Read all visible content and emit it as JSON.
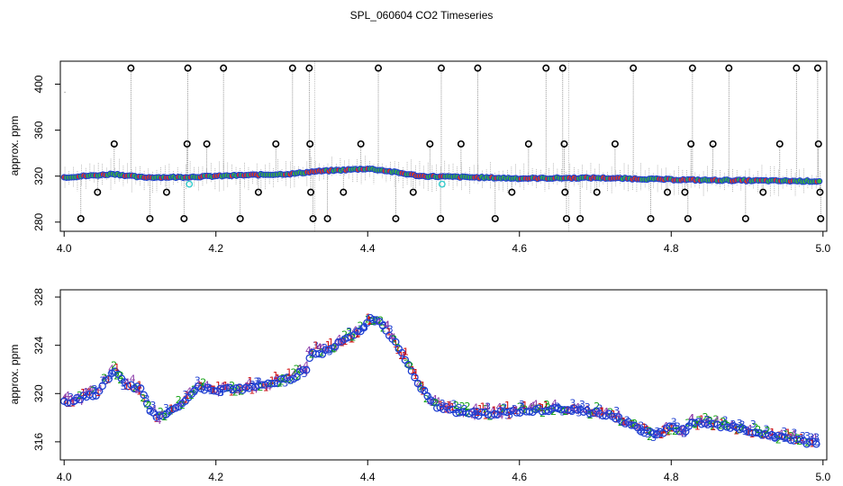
{
  "figure": {
    "title": "SPL_060604  CO2 Timeseries"
  },
  "chart_data": [
    {
      "type": "scatter",
      "panel": "top",
      "ylabel": "approx. ppm",
      "xlabel": "",
      "xlim": [
        3.995,
        5.005
      ],
      "ylim": [
        272,
        420
      ],
      "x_ticks": [
        4.0,
        4.2,
        4.4,
        4.6,
        4.8,
        5.0
      ],
      "x_tick_labels": [
        "4.0",
        "4.2",
        "4.4",
        "4.6",
        "4.8",
        "5.0"
      ],
      "y_ticks": [
        280,
        320,
        360,
        400
      ],
      "y_tick_labels": [
        "280",
        "320",
        "360",
        "400"
      ],
      "baseline_knots": [
        [
          4.0,
          319
        ],
        [
          4.05,
          321
        ],
        [
          4.065,
          322
        ],
        [
          4.1,
          319
        ],
        [
          4.15,
          319
        ],
        [
          4.2,
          320
        ],
        [
          4.3,
          322
        ],
        [
          4.33,
          324
        ],
        [
          4.4,
          326.5
        ],
        [
          4.42,
          325
        ],
        [
          4.47,
          320
        ],
        [
          4.6,
          318
        ],
        [
          4.7,
          318.5
        ],
        [
          4.8,
          317
        ],
        [
          4.85,
          316.5
        ],
        [
          5.0,
          315.5
        ]
      ],
      "outliers": [
        {
          "x": 4.022,
          "y": 283
        },
        {
          "x": 4.044,
          "y": 306
        },
        {
          "x": 4.066,
          "y": 348
        },
        {
          "x": 4.088,
          "y": 414
        },
        {
          "x": 4.113,
          "y": 283
        },
        {
          "x": 4.135,
          "y": 306
        },
        {
          "x": 4.158,
          "y": 283
        },
        {
          "x": 4.162,
          "y": 348
        },
        {
          "x": 4.163,
          "y": 414
        },
        {
          "x": 4.188,
          "y": 348
        },
        {
          "x": 4.21,
          "y": 414
        },
        {
          "x": 4.232,
          "y": 283
        },
        {
          "x": 4.256,
          "y": 306
        },
        {
          "x": 4.279,
          "y": 348
        },
        {
          "x": 4.301,
          "y": 414
        },
        {
          "x": 4.323,
          "y": 414
        },
        {
          "x": 4.324,
          "y": 348
        },
        {
          "x": 4.325,
          "y": 306
        },
        {
          "x": 4.328,
          "y": 283
        },
        {
          "x": 4.347,
          "y": 283
        },
        {
          "x": 4.368,
          "y": 306
        },
        {
          "x": 4.391,
          "y": 348
        },
        {
          "x": 4.414,
          "y": 414
        },
        {
          "x": 4.437,
          "y": 283
        },
        {
          "x": 4.46,
          "y": 306
        },
        {
          "x": 4.482,
          "y": 348
        },
        {
          "x": 4.497,
          "y": 414
        },
        {
          "x": 4.496,
          "y": 283
        },
        {
          "x": 4.523,
          "y": 348
        },
        {
          "x": 4.545,
          "y": 414
        },
        {
          "x": 4.568,
          "y": 283
        },
        {
          "x": 4.59,
          "y": 306
        },
        {
          "x": 4.612,
          "y": 348
        },
        {
          "x": 4.635,
          "y": 414
        },
        {
          "x": 4.657,
          "y": 414
        },
        {
          "x": 4.659,
          "y": 348
        },
        {
          "x": 4.66,
          "y": 306
        },
        {
          "x": 4.662,
          "y": 283
        },
        {
          "x": 4.68,
          "y": 283
        },
        {
          "x": 4.702,
          "y": 306
        },
        {
          "x": 4.726,
          "y": 348
        },
        {
          "x": 4.75,
          "y": 414
        },
        {
          "x": 4.773,
          "y": 283
        },
        {
          "x": 4.795,
          "y": 306
        },
        {
          "x": 4.818,
          "y": 306
        },
        {
          "x": 4.822,
          "y": 283
        },
        {
          "x": 4.826,
          "y": 348
        },
        {
          "x": 4.828,
          "y": 414
        },
        {
          "x": 4.855,
          "y": 348
        },
        {
          "x": 4.876,
          "y": 414
        },
        {
          "x": 4.898,
          "y": 283
        },
        {
          "x": 4.921,
          "y": 306
        },
        {
          "x": 4.943,
          "y": 348
        },
        {
          "x": 4.965,
          "y": 414
        },
        {
          "x": 4.993,
          "y": 414
        },
        {
          "x": 4.994,
          "y": 348
        },
        {
          "x": 4.996,
          "y": 306
        },
        {
          "x": 4.997,
          "y": 283
        }
      ],
      "cyan_points": [
        {
          "x": 4.165,
          "y": 313
        },
        {
          "x": 4.498,
          "y": 313
        }
      ]
    },
    {
      "type": "scatter",
      "panel": "bottom",
      "ylabel": "approx. ppm",
      "xlabel": "",
      "xlim": [
        3.995,
        5.005
      ],
      "ylim": [
        314.5,
        328.6
      ],
      "x_ticks": [
        4.0,
        4.2,
        4.4,
        4.6,
        4.8,
        5.0
      ],
      "x_tick_labels": [
        "4.0",
        "4.2",
        "4.4",
        "4.6",
        "4.8",
        "5.0"
      ],
      "y_ticks": [
        316,
        320,
        324,
        328
      ],
      "y_tick_labels": [
        "316",
        "320",
        "324",
        "328"
      ],
      "series_knots": [
        [
          4.0,
          319.2
        ],
        [
          4.02,
          319.6
        ],
        [
          4.045,
          320.0
        ],
        [
          4.06,
          321.5
        ],
        [
          4.068,
          321.9
        ],
        [
          4.08,
          320.8
        ],
        [
          4.1,
          320.4
        ],
        [
          4.112,
          318.8
        ],
        [
          4.125,
          318.0
        ],
        [
          4.14,
          318.5
        ],
        [
          4.155,
          319.2
        ],
        [
          4.175,
          320.5
        ],
        [
          4.2,
          320.3
        ],
        [
          4.25,
          320.5
        ],
        [
          4.3,
          321.3
        ],
        [
          4.32,
          322.0
        ],
        [
          4.325,
          323.5
        ],
        [
          4.34,
          323.4
        ],
        [
          4.37,
          324.4
        ],
        [
          4.395,
          325.5
        ],
        [
          4.405,
          326.3
        ],
        [
          4.415,
          326.0
        ],
        [
          4.43,
          324.8
        ],
        [
          4.45,
          322.8
        ],
        [
          4.47,
          320.5
        ],
        [
          4.49,
          319.0
        ],
        [
          4.52,
          318.4
        ],
        [
          4.55,
          318.3
        ],
        [
          4.6,
          318.5
        ],
        [
          4.65,
          318.7
        ],
        [
          4.68,
          318.6
        ],
        [
          4.72,
          318.2
        ],
        [
          4.76,
          317.0
        ],
        [
          4.78,
          316.5
        ],
        [
          4.8,
          317.2
        ],
        [
          4.82,
          316.9
        ],
        [
          4.83,
          317.6
        ],
        [
          4.86,
          317.4
        ],
        [
          4.9,
          317.0
        ],
        [
          4.93,
          316.5
        ],
        [
          4.96,
          316.2
        ],
        [
          5.0,
          315.7
        ]
      ],
      "marker_legend": [
        "o",
        "1",
        "2",
        "3",
        "4"
      ],
      "marker_colors": {
        "o": "#1f3fd1",
        "1": "#d01010",
        "2": "#10a010",
        "3": "#1f3fd1",
        "4": "#8a3aa8"
      }
    }
  ],
  "colors": {
    "ring_blue": "#2040d0",
    "fill_green": "#39b539",
    "fill_red": "#e03a1a",
    "outlier_ring": "#000000",
    "stem_gray": "#8a8a8a",
    "cyan": "#33cccc"
  }
}
